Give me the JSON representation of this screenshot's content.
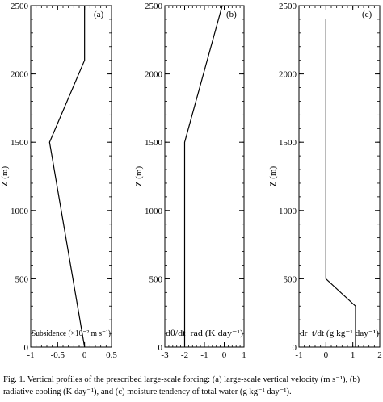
{
  "chart_data": [
    {
      "type": "line",
      "panel_label": "(a)",
      "xlabel": "Subsidence (×10⁻² m s⁻¹)",
      "ylabel": "Z (m)",
      "xlim": [
        -1,
        0.5
      ],
      "ylim": [
        0,
        2500
      ],
      "xticks": [
        "-1",
        "-0.5",
        "0",
        "0.5"
      ],
      "yticks": [
        "0",
        "500",
        "1000",
        "1500",
        "2000",
        "2500"
      ],
      "series": [
        {
          "x": [
            0,
            -0.65,
            0,
            0
          ],
          "y": [
            0,
            1500,
            2100,
            2500
          ]
        }
      ]
    },
    {
      "type": "line",
      "panel_label": "(b)",
      "xlabel": "dθ/dt_rad (K day⁻¹)",
      "ylabel": "Z (m)",
      "xlim": [
        -3,
        1
      ],
      "ylim": [
        0,
        2500
      ],
      "xticks": [
        "-3",
        "-2",
        "-1",
        "0",
        "1"
      ],
      "yticks": [
        "0",
        "500",
        "1000",
        "1500",
        "2000",
        "2500"
      ],
      "series": [
        {
          "x": [
            -2,
            -2,
            -0.1
          ],
          "y": [
            0,
            1500,
            2500
          ]
        }
      ]
    },
    {
      "type": "line",
      "panel_label": "(c)",
      "xlabel": "dr_t/dt (g kg⁻¹ day⁻¹)",
      "ylabel": "Z (m)",
      "xlim": [
        -1,
        2
      ],
      "ylim": [
        0,
        2500
      ],
      "xticks": [
        "-1",
        "0",
        "1",
        "2"
      ],
      "yticks": [
        "0",
        "500",
        "1000",
        "1500",
        "2000",
        "2500"
      ],
      "series": [
        {
          "x": [
            1.1,
            1.1,
            0,
            0
          ],
          "y": [
            0,
            300,
            500,
            2400
          ]
        }
      ]
    }
  ],
  "caption": "Fig. 1. Vertical profiles of the prescribed large-scale forcing: (a) large-scale vertical velocity (m s⁻¹), (b) radiative cooling (K day⁻¹), and (c) moisture tendency of total water (g kg⁻¹ day⁻¹)."
}
